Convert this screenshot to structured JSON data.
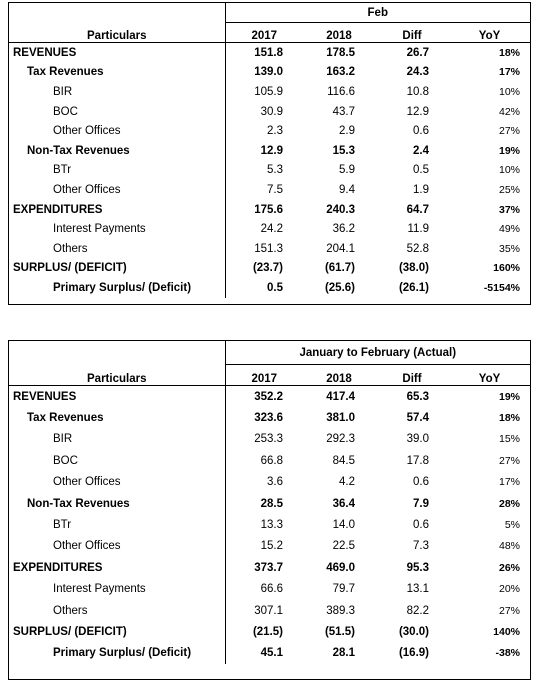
{
  "tables": [
    {
      "group_header": "Feb",
      "columns": [
        "Particulars",
        "2017",
        "2018",
        "Diff",
        "YoY"
      ],
      "rows": [
        {
          "label": "REVENUES",
          "level": 0,
          "bold": true,
          "v2017": "151.8",
          "v2018": "178.5",
          "diff": "26.7",
          "yoy": "18%"
        },
        {
          "label": "Tax Revenues",
          "level": 1,
          "bold": true,
          "v2017": "139.0",
          "v2018": "163.2",
          "diff": "24.3",
          "yoy": "17%"
        },
        {
          "label": "BIR",
          "level": 2,
          "bold": false,
          "v2017": "105.9",
          "v2018": "116.6",
          "diff": "10.8",
          "yoy": "10%"
        },
        {
          "label": "BOC",
          "level": 2,
          "bold": false,
          "v2017": "30.9",
          "v2018": "43.7",
          "diff": "12.9",
          "yoy": "42%"
        },
        {
          "label": "Other Offices",
          "level": 2,
          "bold": false,
          "v2017": "2.3",
          "v2018": "2.9",
          "diff": "0.6",
          "yoy": "27%"
        },
        {
          "label": "Non-Tax Revenues",
          "level": 1,
          "bold": true,
          "v2017": "12.9",
          "v2018": "15.3",
          "diff": "2.4",
          "yoy": "19%"
        },
        {
          "label": "BTr",
          "level": 2,
          "bold": false,
          "v2017": "5.3",
          "v2018": "5.9",
          "diff": "0.5",
          "yoy": "10%"
        },
        {
          "label": "Other Offices",
          "level": 2,
          "bold": false,
          "v2017": "7.5",
          "v2018": "9.4",
          "diff": "1.9",
          "yoy": "25%"
        },
        {
          "label": "EXPENDITURES",
          "level": 0,
          "bold": true,
          "v2017": "175.6",
          "v2018": "240.3",
          "diff": "64.7",
          "yoy": "37%"
        },
        {
          "label": "Interest Payments",
          "level": 2,
          "bold": false,
          "v2017": "24.2",
          "v2018": "36.2",
          "diff": "11.9",
          "yoy": "49%"
        },
        {
          "label": "Others",
          "level": 2,
          "bold": false,
          "v2017": "151.3",
          "v2018": "204.1",
          "diff": "52.8",
          "yoy": "35%"
        },
        {
          "label": "SURPLUS/ (DEFICIT)",
          "level": 0,
          "bold": true,
          "v2017": "(23.7)",
          "v2018": "(61.7)",
          "diff": "(38.0)",
          "yoy": "160%"
        },
        {
          "label": "Primary Surplus/ (Deficit)",
          "level": 2,
          "bold": true,
          "v2017": "0.5",
          "v2018": "(25.6)",
          "diff": "(26.1)",
          "yoy": "-5154%"
        }
      ]
    },
    {
      "group_header": "January to February  (Actual)",
      "columns": [
        "Particulars",
        "2017",
        "2018",
        "Diff",
        "YoY"
      ],
      "rows": [
        {
          "label": "REVENUES",
          "level": 0,
          "bold": true,
          "v2017": "352.2",
          "v2018": "417.4",
          "diff": "65.3",
          "yoy": "19%"
        },
        {
          "label": "Tax Revenues",
          "level": 1,
          "bold": true,
          "v2017": "323.6",
          "v2018": "381.0",
          "diff": "57.4",
          "yoy": "18%"
        },
        {
          "label": "BIR",
          "level": 2,
          "bold": false,
          "v2017": "253.3",
          "v2018": "292.3",
          "diff": "39.0",
          "yoy": "15%"
        },
        {
          "label": "BOC",
          "level": 2,
          "bold": false,
          "v2017": "66.8",
          "v2018": "84.5",
          "diff": "17.8",
          "yoy": "27%"
        },
        {
          "label": "Other Offices",
          "level": 2,
          "bold": false,
          "v2017": "3.6",
          "v2018": "4.2",
          "diff": "0.6",
          "yoy": "17%"
        },
        {
          "label": "Non-Tax Revenues",
          "level": 1,
          "bold": true,
          "v2017": "28.5",
          "v2018": "36.4",
          "diff": "7.9",
          "yoy": "28%"
        },
        {
          "label": "BTr",
          "level": 2,
          "bold": false,
          "v2017": "13.3",
          "v2018": "14.0",
          "diff": "0.6",
          "yoy": "5%"
        },
        {
          "label": "Other Offices",
          "level": 2,
          "bold": false,
          "v2017": "15.2",
          "v2018": "22.5",
          "diff": "7.3",
          "yoy": "48%"
        },
        {
          "label": "EXPENDITURES",
          "level": 0,
          "bold": true,
          "v2017": "373.7",
          "v2018": "469.0",
          "diff": "95.3",
          "yoy": "26%"
        },
        {
          "label": "Interest Payments",
          "level": 2,
          "bold": false,
          "v2017": "66.6",
          "v2018": "79.7",
          "diff": "13.1",
          "yoy": "20%"
        },
        {
          "label": "Others",
          "level": 2,
          "bold": false,
          "v2017": "307.1",
          "v2018": "389.3",
          "diff": "82.2",
          "yoy": "27%"
        },
        {
          "label": "SURPLUS/ (DEFICIT)",
          "level": 0,
          "bold": true,
          "v2017": "(21.5)",
          "v2018": "(51.5)",
          "diff": "(30.0)",
          "yoy": "140%"
        },
        {
          "label": "Primary Surplus/ (Deficit)",
          "level": 2,
          "bold": true,
          "v2017": "45.1",
          "v2018": "28.1",
          "diff": "(16.9)",
          "yoy": "-38%"
        }
      ]
    }
  ]
}
